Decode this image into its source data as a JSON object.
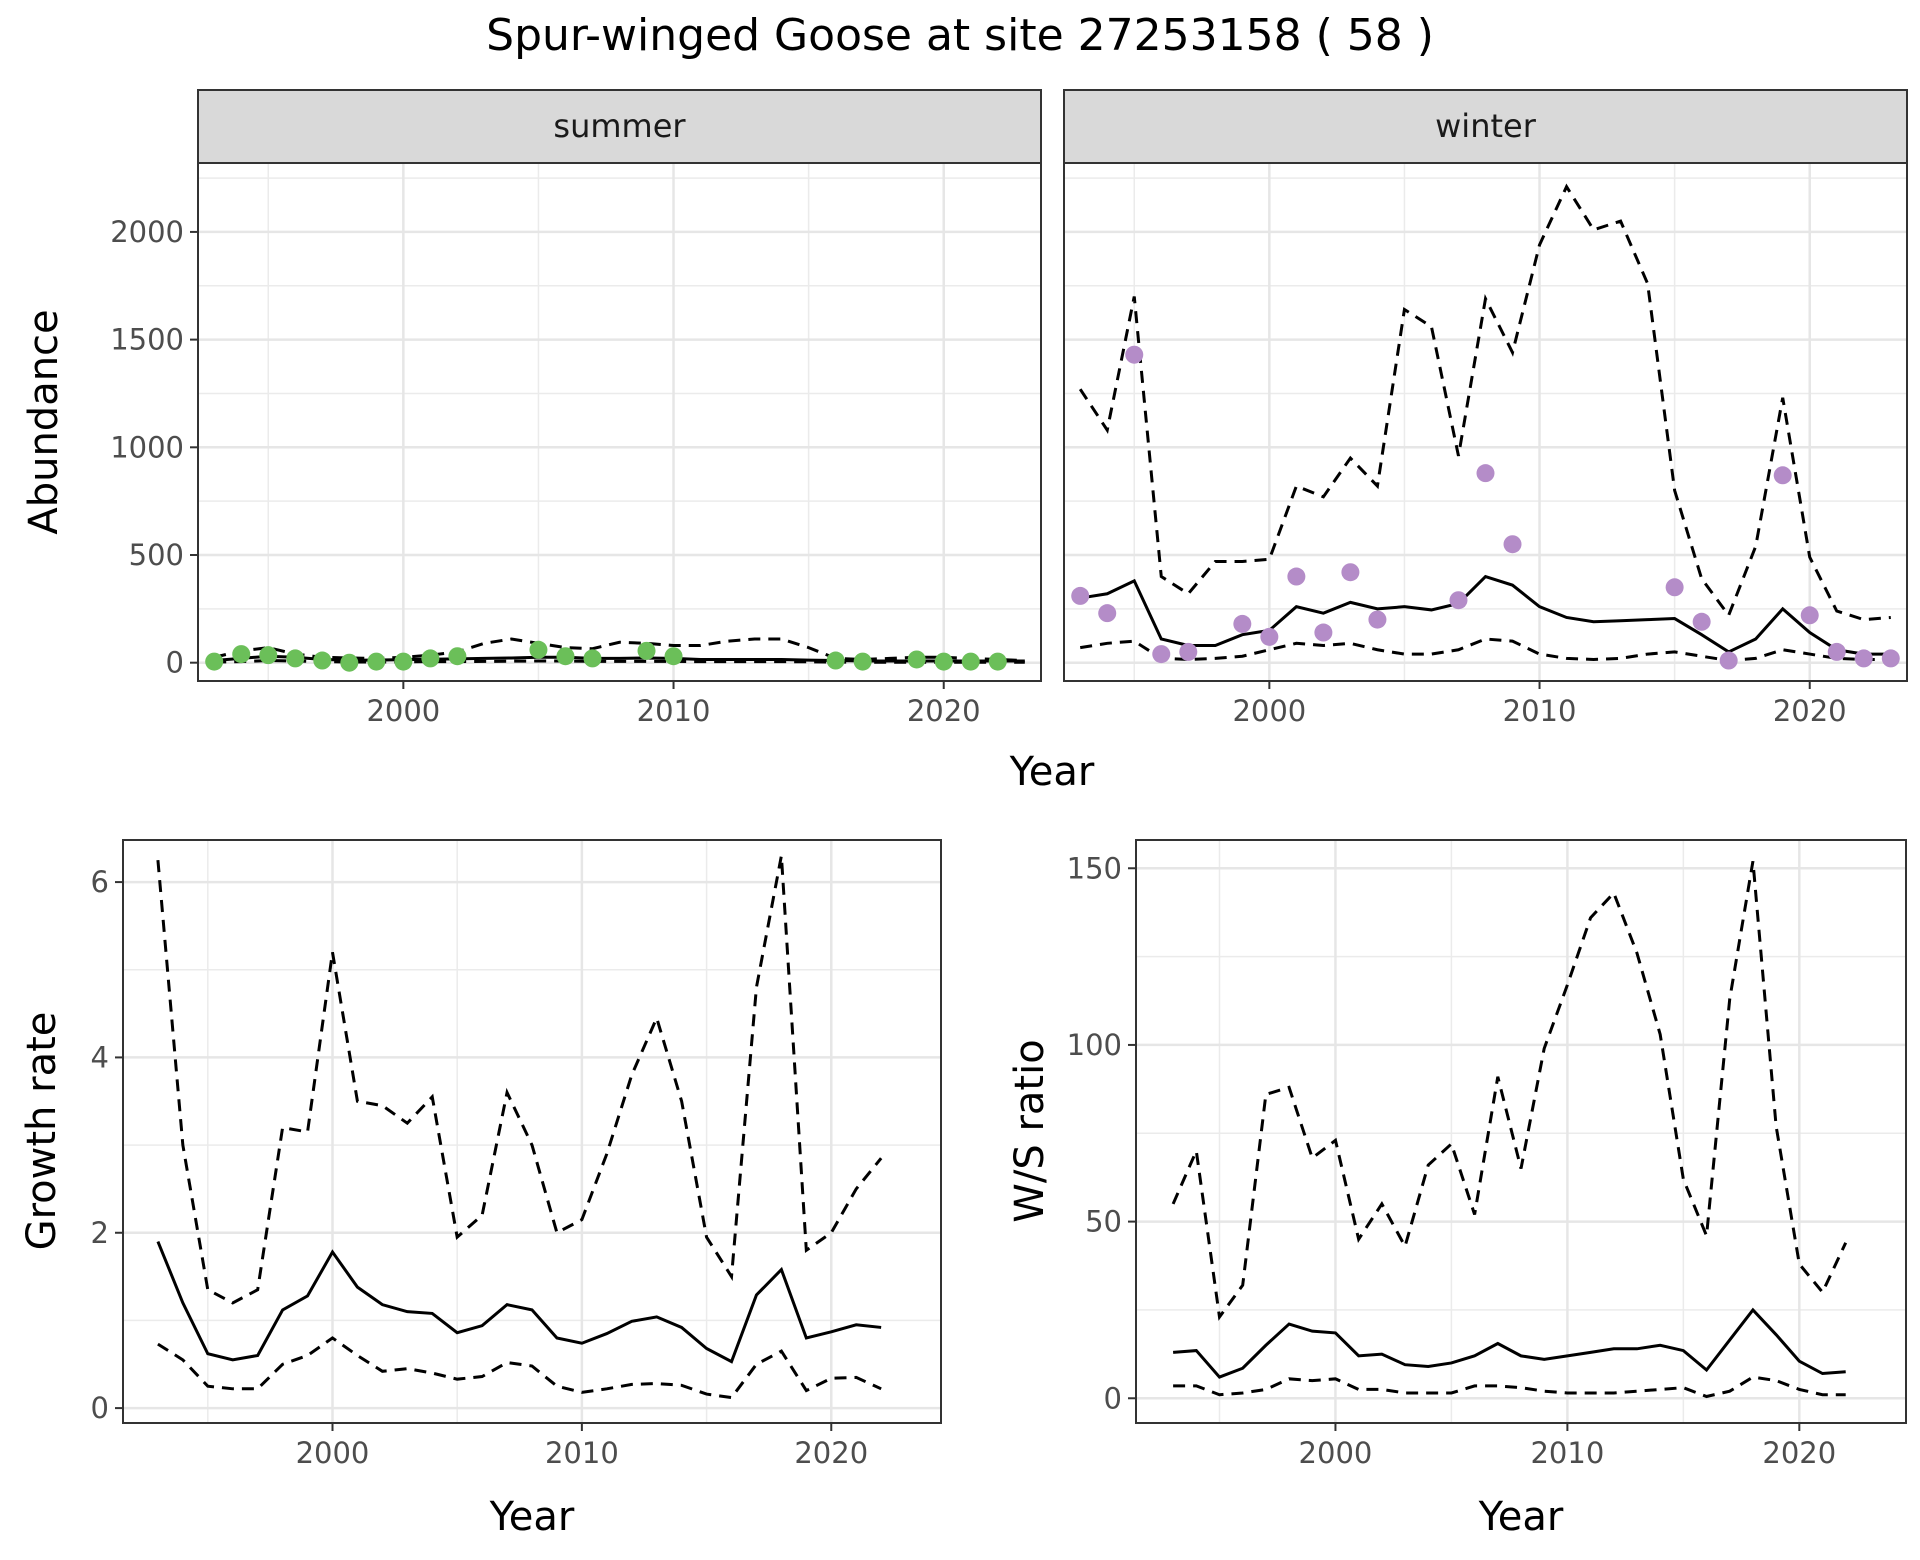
{
  "title": "Spur-winged Goose at site 27253158 ( 58 )",
  "chart_data": [
    {
      "id": "abundance",
      "type": "line",
      "facets": [
        "summer",
        "winter"
      ],
      "xlabel": "Year",
      "ylabel": "Abundance",
      "xlim": [
        1992.4,
        2023.6
      ],
      "ylim": [
        -85,
        2320
      ],
      "xticks": [
        2000,
        2010,
        2020
      ],
      "yticks": [
        0,
        500,
        1000,
        1500,
        2000
      ],
      "grid": true,
      "panels": [
        {
          "facet": "summer",
          "point_color": "#6bbf59",
          "x": [
            1993,
            1994,
            1995,
            1996,
            1997,
            1998,
            1999,
            2000,
            2001,
            2002,
            2003,
            2004,
            2005,
            2006,
            2007,
            2008,
            2009,
            2010,
            2011,
            2012,
            2013,
            2014,
            2015,
            2016,
            2017,
            2018,
            2019,
            2020,
            2021,
            2022,
            2023
          ],
          "mean": [
            10,
            20,
            30,
            25,
            15,
            12,
            12,
            14,
            16,
            18,
            20,
            22,
            25,
            25,
            20,
            20,
            22,
            20,
            15,
            15,
            15,
            15,
            12,
            10,
            8,
            8,
            8,
            8,
            8,
            8,
            8
          ],
          "upper": [
            25,
            55,
            70,
            40,
            25,
            22,
            20,
            25,
            35,
            50,
            90,
            110,
            90,
            70,
            65,
            95,
            90,
            80,
            80,
            100,
            110,
            110,
            70,
            20,
            15,
            20,
            25,
            25,
            20,
            15,
            10
          ],
          "lower": [
            3,
            5,
            10,
            8,
            5,
            3,
            3,
            4,
            5,
            5,
            6,
            7,
            8,
            8,
            6,
            6,
            6,
            6,
            5,
            5,
            5,
            5,
            4,
            3,
            2,
            2,
            2,
            2,
            2,
            2,
            2
          ],
          "obs_x": [
            1993,
            1994,
            1995,
            1996,
            1997,
            1998,
            1999,
            2000,
            2001,
            2002,
            2005,
            2006,
            2007,
            2009,
            2010,
            2016,
            2017,
            2019,
            2020,
            2021,
            2022
          ],
          "obs_y": [
            5,
            40,
            35,
            20,
            10,
            0,
            5,
            5,
            20,
            30,
            60,
            30,
            20,
            55,
            30,
            10,
            5,
            15,
            5,
            5,
            5
          ]
        },
        {
          "facet": "winter",
          "point_color": "#b48cc8",
          "x": [
            1993,
            1994,
            1995,
            1996,
            1997,
            1998,
            1999,
            2000,
            2001,
            2002,
            2003,
            2004,
            2005,
            2006,
            2007,
            2008,
            2009,
            2010,
            2011,
            2012,
            2013,
            2014,
            2015,
            2016,
            2017,
            2018,
            2019,
            2020,
            2021,
            2022,
            2023
          ],
          "mean": [
            300,
            320,
            380,
            110,
            80,
            80,
            130,
            150,
            260,
            230,
            280,
            250,
            260,
            245,
            275,
            400,
            360,
            260,
            210,
            190,
            195,
            200,
            205,
            130,
            50,
            110,
            250,
            140,
            60,
            40,
            40
          ],
          "upper": [
            1270,
            1080,
            1700,
            400,
            320,
            470,
            470,
            480,
            820,
            770,
            950,
            820,
            1640,
            1560,
            960,
            1690,
            1440,
            1940,
            2210,
            2010,
            2050,
            1760,
            800,
            390,
            220,
            540,
            1230,
            490,
            240,
            200,
            210
          ],
          "lower": [
            70,
            90,
            100,
            20,
            15,
            20,
            30,
            60,
            90,
            80,
            90,
            60,
            40,
            40,
            60,
            110,
            100,
            40,
            20,
            15,
            20,
            40,
            50,
            30,
            10,
            20,
            60,
            40,
            20,
            15,
            15
          ],
          "obs_x": [
            1993,
            1994,
            1995,
            1996,
            1997,
            1999,
            2000,
            2001,
            2002,
            2003,
            2004,
            2007,
            2008,
            2009,
            2015,
            2016,
            2017,
            2019,
            2020,
            2021,
            2022,
            2023
          ],
          "obs_y": [
            310,
            230,
            1430,
            40,
            50,
            180,
            120,
            400,
            140,
            420,
            200,
            290,
            880,
            550,
            350,
            190,
            10,
            870,
            220,
            50,
            20,
            20
          ]
        }
      ]
    },
    {
      "id": "growth",
      "type": "line",
      "xlabel": "Year",
      "ylabel": "Growth rate",
      "xlim": [
        1991.6,
        2024.4
      ],
      "ylim": [
        -0.17,
        6.48
      ],
      "xticks": [
        2000,
        2010,
        2020
      ],
      "yticks": [
        0,
        2,
        4,
        6
      ],
      "grid": true,
      "x": [
        1993,
        1994,
        1995,
        1996,
        1997,
        1998,
        1999,
        2000,
        2001,
        2002,
        2003,
        2004,
        2005,
        2006,
        2007,
        2008,
        2009,
        2010,
        2011,
        2012,
        2013,
        2014,
        2015,
        2016,
        2017,
        2018,
        2019,
        2020,
        2021,
        2022
      ],
      "mean": [
        1.9,
        1.2,
        0.62,
        0.55,
        0.6,
        1.12,
        1.28,
        1.78,
        1.38,
        1.18,
        1.1,
        1.08,
        0.86,
        0.94,
        1.18,
        1.12,
        0.8,
        0.74,
        0.85,
        0.99,
        1.04,
        0.92,
        0.68,
        0.53,
        1.29,
        1.58,
        0.8,
        0.87,
        0.95,
        0.92
      ],
      "upper": [
        6.25,
        3.0,
        1.35,
        1.2,
        1.35,
        3.2,
        3.15,
        5.2,
        3.5,
        3.45,
        3.25,
        3.55,
        1.95,
        2.2,
        3.6,
        3.0,
        2.0,
        2.15,
        2.9,
        3.8,
        4.45,
        3.5,
        1.95,
        1.5,
        4.8,
        6.3,
        1.8,
        2.0,
        2.5,
        2.85
      ],
      "lower": [
        0.73,
        0.55,
        0.25,
        0.22,
        0.22,
        0.5,
        0.6,
        0.8,
        0.6,
        0.42,
        0.45,
        0.4,
        0.33,
        0.36,
        0.52,
        0.48,
        0.25,
        0.18,
        0.22,
        0.27,
        0.28,
        0.26,
        0.16,
        0.12,
        0.5,
        0.65,
        0.2,
        0.34,
        0.35,
        0.22
      ]
    },
    {
      "id": "ratio",
      "type": "line",
      "xlabel": "Year",
      "ylabel": "W/S ratio",
      "xlim": [
        1991.4,
        2024.6
      ],
      "ylim": [
        -7,
        158
      ],
      "xticks": [
        2000,
        2010,
        2020
      ],
      "yticks": [
        0,
        50,
        100,
        150
      ],
      "grid": true,
      "x": [
        1993,
        1994,
        1995,
        1996,
        1997,
        1998,
        1999,
        2000,
        2001,
        2002,
        2003,
        2004,
        2005,
        2006,
        2007,
        2008,
        2009,
        2010,
        2011,
        2012,
        2013,
        2014,
        2015,
        2016,
        2017,
        2018,
        2019,
        2020,
        2021,
        2022
      ],
      "mean": [
        13,
        13.5,
        6,
        8.5,
        15,
        21,
        19,
        18.5,
        12,
        12.5,
        9.5,
        9,
        10,
        12,
        15.5,
        12,
        11,
        12,
        13,
        14,
        14,
        15,
        13.5,
        8,
        16.5,
        25,
        18,
        10.5,
        7,
        7.5
      ],
      "upper": [
        55,
        70,
        23,
        32,
        86,
        88,
        68,
        73,
        45,
        55,
        43,
        66,
        72,
        52,
        91,
        65,
        99,
        117,
        136,
        143,
        126,
        103,
        62,
        46,
        113,
        152,
        77,
        38,
        30,
        44
      ],
      "lower": [
        3.5,
        3.5,
        1,
        1.5,
        2.5,
        5.5,
        5,
        5.5,
        2.5,
        2.5,
        1.5,
        1.5,
        1.5,
        3.5,
        3.5,
        3,
        2,
        1.5,
        1.5,
        1.5,
        2,
        2.5,
        3,
        0.5,
        2,
        6,
        5,
        2.5,
        1,
        1
      ]
    }
  ]
}
